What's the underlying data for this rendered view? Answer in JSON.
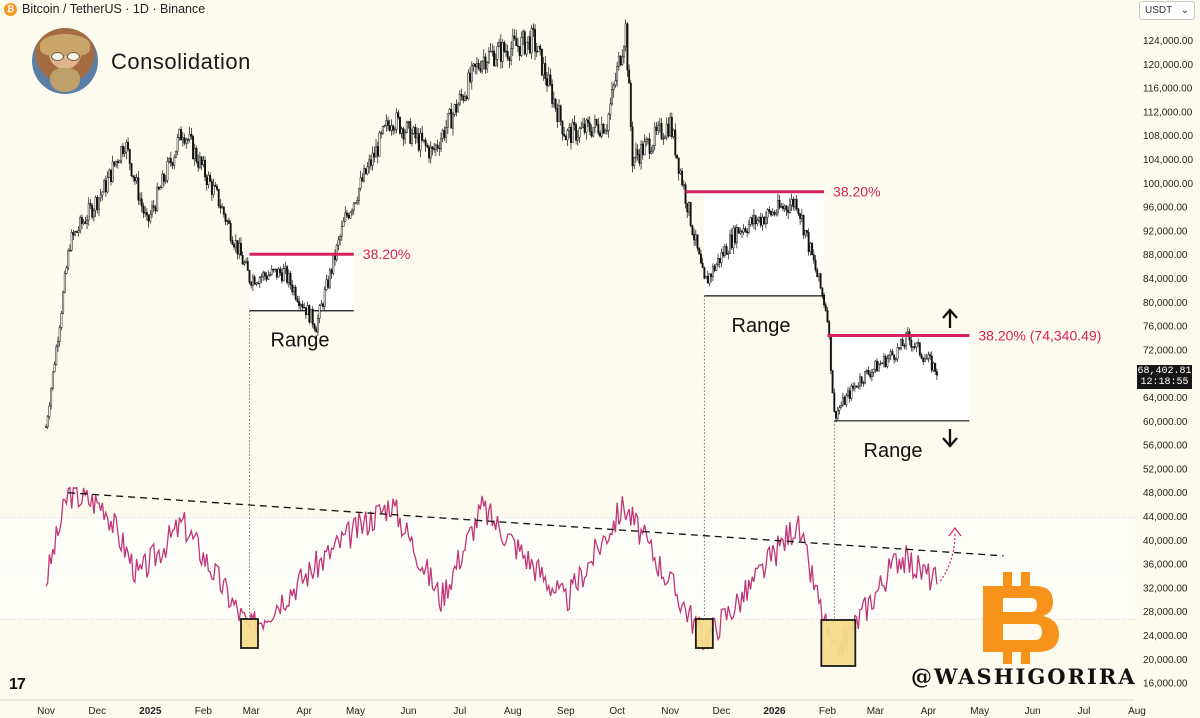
{
  "header": {
    "symbol_line": "Bitcoin / TetherUS · 1D · Binance",
    "currency_select": "USDT"
  },
  "title": "Consolidation",
  "watermark": "@WASHIGORIRA",
  "last_price": "68,402.81",
  "countdown": "12:18:55",
  "colors": {
    "background": "#fdfbee",
    "fib_line": "#d6215e",
    "rsi_line": "#c0357a",
    "candle": "#111111",
    "highlight_box": "#f6dc8c",
    "bitcoin_logo": "#f7931a"
  },
  "icons": [
    "bitcoin-icon",
    "tradingview-logo-icon",
    "avatar-icon",
    "arrow-up-icon",
    "arrow-down-icon",
    "chevron-down-icon"
  ],
  "chart_data": {
    "type": "candlestick",
    "title": "Bitcoin / TetherUS · 1D · Binance",
    "ylim": [
      15000,
      126000
    ],
    "y_ticks": [
      "124,000.00",
      "120,000.00",
      "116,000.00",
      "112,000.00",
      "108,000.00",
      "104,000.00",
      "100,000.00",
      "96,000.00",
      "92,000.00",
      "88,000.00",
      "84,000.00",
      "80,000.00",
      "76,000.00",
      "72,000.00",
      "68,000.00",
      "64,000.00",
      "60,000.00",
      "56,000.00",
      "52,000.00",
      "48,000.00",
      "44,000.00",
      "40,000.00",
      "36,000.00",
      "32,000.00",
      "28,000.00",
      "24,000.00",
      "20,000.00",
      "16,000.00"
    ],
    "x_ticks": [
      "Nov",
      "Dec",
      "2025",
      "Feb",
      "Mar",
      "Apr",
      "May",
      "Jun",
      "Jul",
      "Aug",
      "Sep",
      "Oct",
      "Nov",
      "Dec",
      "2026",
      "Feb",
      "Mar",
      "Apr",
      "May",
      "Jun",
      "Jul",
      "Aug"
    ],
    "price_path": [
      [
        "2024-11-01",
        59000
      ],
      [
        "2024-11-15",
        90000
      ],
      [
        "2024-12-05",
        99000
      ],
      [
        "2024-12-17",
        107000
      ],
      [
        "2024-12-30",
        93000
      ],
      [
        "2025-01-20",
        109000
      ],
      [
        "2025-02-10",
        97000
      ],
      [
        "2025-02-28",
        84000
      ],
      [
        "2025-03-20",
        85000
      ],
      [
        "2025-04-08",
        76000
      ],
      [
        "2025-04-25",
        94000
      ],
      [
        "2025-05-22",
        111000
      ],
      [
        "2025-06-15",
        105000
      ],
      [
        "2025-07-14",
        121000
      ],
      [
        "2025-08-13",
        124000
      ],
      [
        "2025-09-01",
        108000
      ],
      [
        "2025-09-25",
        110000
      ],
      [
        "2025-10-06",
        126000
      ],
      [
        "2025-10-10",
        104000
      ],
      [
        "2025-11-01",
        110000
      ],
      [
        "2025-11-21",
        83000
      ],
      [
        "2025-12-10",
        92000
      ],
      [
        "2026-01-14",
        97000
      ],
      [
        "2026-02-01",
        78000
      ],
      [
        "2026-02-05",
        61000
      ],
      [
        "2026-02-20",
        67000
      ],
      [
        "2026-03-15",
        72000
      ],
      [
        "2026-03-20",
        74000
      ],
      [
        "2026-04-06",
        68400
      ]
    ],
    "rsi_path": [
      [
        "2024-11-01",
        45
      ],
      [
        "2024-11-14",
        80
      ],
      [
        "2024-12-05",
        75
      ],
      [
        "2024-12-25",
        47
      ],
      [
        "2025-01-20",
        68
      ],
      [
        "2025-02-28",
        26
      ],
      [
        "2025-04-25",
        62
      ],
      [
        "2025-05-22",
        76
      ],
      [
        "2025-06-20",
        38
      ],
      [
        "2025-07-14",
        74
      ],
      [
        "2025-09-01",
        37
      ],
      [
        "2025-10-05",
        75
      ],
      [
        "2025-11-21",
        22
      ],
      [
        "2025-12-15",
        40
      ],
      [
        "2026-01-14",
        68
      ],
      [
        "2026-02-05",
        15
      ],
      [
        "2026-03-15",
        55
      ],
      [
        "2026-04-06",
        45
      ]
    ],
    "fib_levels": [
      {
        "label": "38.20%",
        "range_from": "2025-02-28",
        "range_to": "2025-04-30",
        "price": 88000
      },
      {
        "label": "38.20%",
        "range_from": "2025-11-10",
        "range_to": "2026-01-30",
        "price": 98500
      },
      {
        "label": "38.20% (74,340.49)",
        "range_from": "2026-02-01",
        "range_to": "2026-04-25",
        "price": 74340.49
      }
    ],
    "ranges": [
      {
        "label": "Range",
        "from": "2025-02-28",
        "to": "2025-04-30",
        "low": 78500,
        "high": 88000
      },
      {
        "label": "Range",
        "from": "2025-11-21",
        "to": "2026-01-30",
        "low": 81000,
        "high": 98500
      },
      {
        "label": "Range",
        "from": "2026-02-05",
        "to": "2026-04-25",
        "low": 60000,
        "high": 74340
      }
    ],
    "oversold_marks": [
      "2025-02-28",
      "2025-11-21",
      "2026-02-05"
    ],
    "rsi_trendline": {
      "from": [
        "2024-11-14",
        80
      ],
      "to": [
        "2026-05-15",
        55
      ]
    }
  }
}
